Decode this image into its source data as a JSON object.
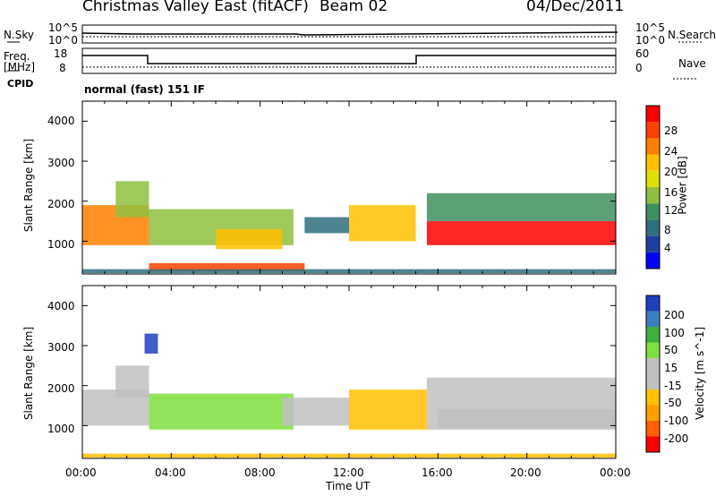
{
  "header": {
    "station": "Christmas Valley East (fitACF)",
    "beam": "Beam 02",
    "date": "04/Dec/2011"
  },
  "strip": {
    "nsky_label": "N.Sky",
    "nsky_ticks": [
      "10^5",
      "10^0"
    ],
    "nsearch_label": "N.Search",
    "nsearch_ticks": [
      "10^5",
      "10^0"
    ],
    "freq_label_1": "Freq.",
    "freq_label_2": "[MHz]",
    "freq_ticks": [
      "18",
      "8"
    ],
    "nave_label": "Nave",
    "nave_ticks": [
      "60",
      "0"
    ],
    "cpid_label": "CPID",
    "cpid_text": "normal (fast) 151 IF"
  },
  "chart_data": [
    {
      "type": "heatmap",
      "title": "",
      "xlabel": "Time UT",
      "ylabel": "Slant Range [km]",
      "x_ticks": [
        "00:00",
        "04:00",
        "08:00",
        "12:00",
        "16:00",
        "20:00",
        "00:00"
      ],
      "y_ticks": [
        "4000",
        "3000",
        "2000",
        "1000"
      ],
      "ylim": [
        180,
        4500
      ],
      "colorbar": {
        "label": "Power [dB]",
        "ticks": [
          "28",
          "24",
          "20",
          "16",
          "12",
          "8",
          "4"
        ],
        "range": [
          0,
          30
        ],
        "colors": [
          "#0000ff",
          "#1f3f9f",
          "#2f6f7f",
          "#3f8f5f",
          "#8fbf3f",
          "#dfe000",
          "#ffbf00",
          "#ff8000",
          "#ff4000",
          "#ff0000"
        ]
      },
      "bands": [
        {
          "t": [
            0,
            3
          ],
          "range": [
            900,
            1900
          ],
          "value": 22
        },
        {
          "t": [
            1.5,
            3
          ],
          "range": [
            1600,
            2500
          ],
          "value": 14
        },
        {
          "t": [
            3,
            9.5
          ],
          "range": [
            900,
            1800
          ],
          "value": 12
        },
        {
          "t": [
            6,
            9
          ],
          "range": [
            800,
            1300
          ],
          "value": 20
        },
        {
          "t": [
            10,
            12
          ],
          "range": [
            1200,
            1600
          ],
          "value": 6
        },
        {
          "t": [
            12,
            15
          ],
          "range": [
            1000,
            1900
          ],
          "value": 20
        },
        {
          "t": [
            15.5,
            24
          ],
          "range": [
            900,
            1500
          ],
          "value": 27
        },
        {
          "t": [
            15.5,
            24
          ],
          "range": [
            1500,
            2200
          ],
          "value": 10
        },
        {
          "t": [
            3,
            10
          ],
          "range": [
            250,
            450
          ],
          "value": 26
        },
        {
          "t": [
            0,
            24
          ],
          "range": [
            200,
            300
          ],
          "value": 6
        }
      ]
    },
    {
      "type": "heatmap",
      "title": "",
      "xlabel": "Time UT",
      "ylabel": "Slant Range [km]",
      "x_ticks": [
        "00:00",
        "04:00",
        "08:00",
        "12:00",
        "16:00",
        "20:00",
        "00:00"
      ],
      "y_ticks": [
        "4000",
        "3000",
        "2000",
        "1000"
      ],
      "ylim": [
        180,
        4500
      ],
      "colorbar": {
        "label": "Velocity [m s^-1]",
        "ticks": [
          "200",
          "100",
          "50",
          "15",
          "-15",
          "-50",
          "-100",
          "-200"
        ],
        "range": [
          -250,
          250
        ],
        "colors": [
          "#ff0000",
          "#ff6000",
          "#ffa000",
          "#ffc000",
          "#c0c0c0",
          "#c0c0c0",
          "#7fdf3f",
          "#3faf3f",
          "#3f7fbf",
          "#1f3fbf"
        ]
      },
      "bands": [
        {
          "t": [
            0,
            3
          ],
          "range": [
            1000,
            1900
          ],
          "value": 0
        },
        {
          "t": [
            1.5,
            3
          ],
          "range": [
            1700,
            2500
          ],
          "value": 40
        },
        {
          "t": [
            3,
            9.5
          ],
          "range": [
            900,
            1800
          ],
          "value": 60
        },
        {
          "t": [
            9,
            12
          ],
          "range": [
            1000,
            1700
          ],
          "value": -40
        },
        {
          "t": [
            12,
            15.5
          ],
          "range": [
            900,
            1900
          ],
          "value": -60
        },
        {
          "t": [
            15.5,
            24
          ],
          "range": [
            900,
            2200
          ],
          "value": 0
        },
        {
          "t": [
            16,
            24
          ],
          "range": [
            950,
            1400
          ],
          "value": 0
        },
        {
          "t": [
            2.8,
            3.4
          ],
          "range": [
            2800,
            3300
          ],
          "value": 220
        },
        {
          "t": [
            0,
            24
          ],
          "range": [
            200,
            300
          ],
          "value": -80
        }
      ]
    }
  ]
}
